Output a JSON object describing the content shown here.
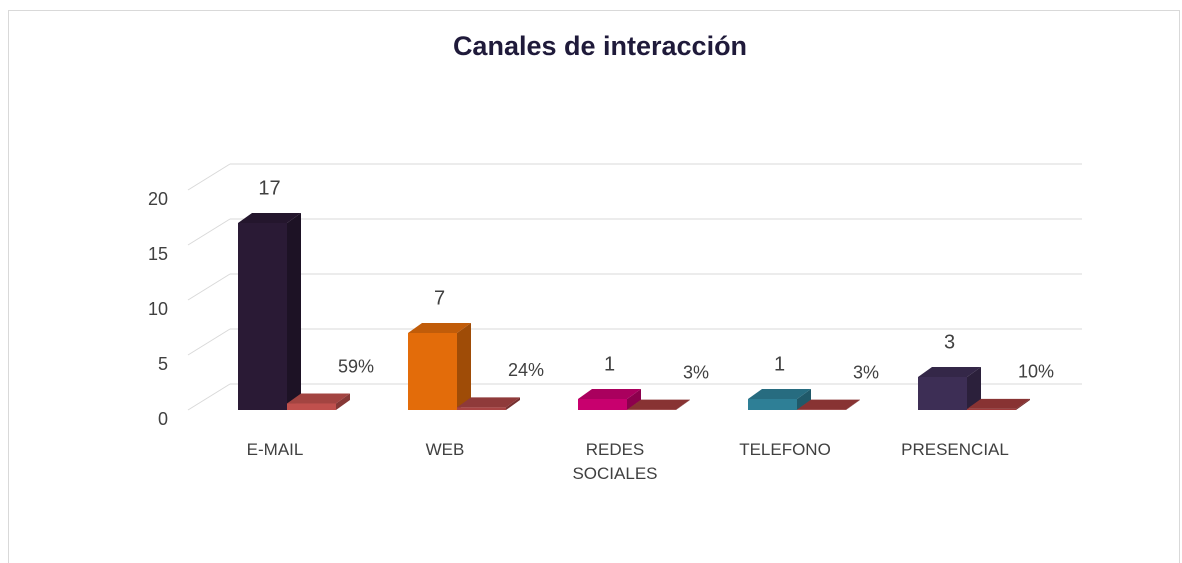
{
  "chart_data": {
    "type": "bar3d",
    "title": "Canales de interacción",
    "categories": [
      "E-MAIL",
      "WEB",
      "REDES SOCIALES",
      "TELEFONO",
      "PRESENCIAL"
    ],
    "series": [
      {
        "colors": [
          "#2a1a35",
          "#e36c0a",
          "#c8006e",
          "#2e7f96",
          "#3d2e55"
        ],
        "values": [
          17,
          7,
          1,
          1,
          3
        ]
      },
      {
        "colors": [
          "#c0504d",
          "#a84444",
          "#a03c3c",
          "#a03c3c",
          "#a03c3c"
        ],
        "values": [
          0.59,
          0.24,
          0.03,
          0.03,
          0.1
        ],
        "value_labels": [
          "59%",
          "24%",
          "3%",
          "3%",
          "10%"
        ]
      }
    ],
    "ylim": [
      0,
      20
    ],
    "yticks": [
      0,
      5,
      10,
      15,
      20
    ],
    "grid": true
  }
}
